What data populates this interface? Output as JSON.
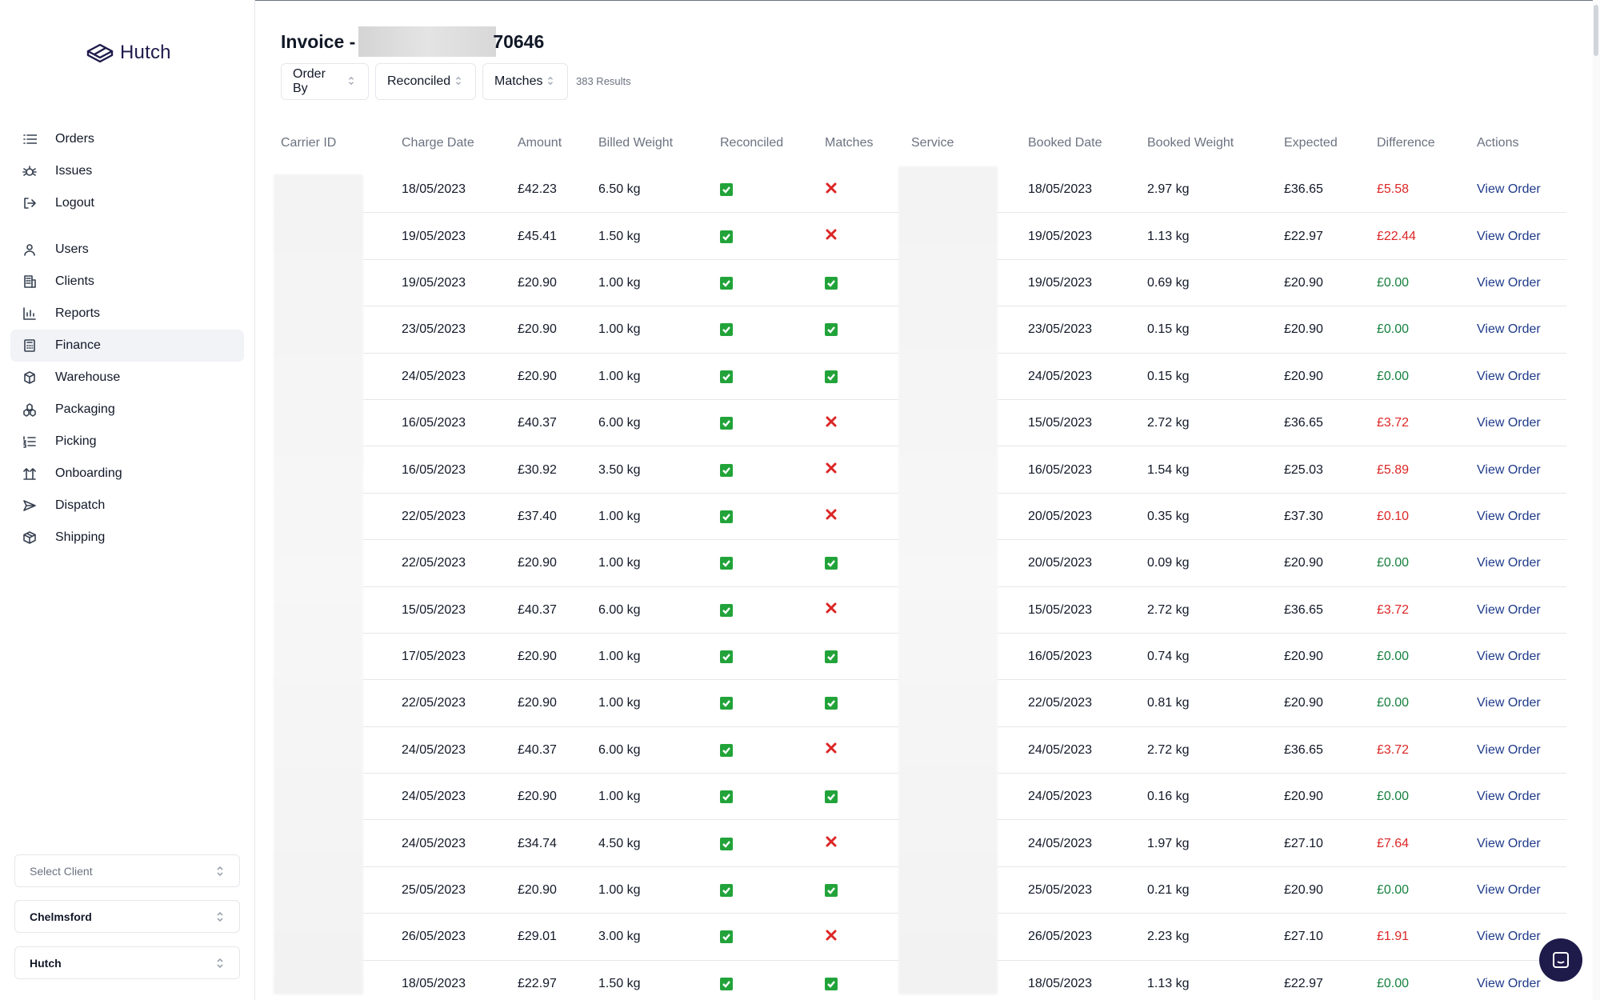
{
  "app": {
    "name": "Hutch"
  },
  "sidebar": {
    "items": [
      {
        "label": "Orders",
        "icon": "list-icon"
      },
      {
        "label": "Issues",
        "icon": "bug-icon"
      },
      {
        "label": "Logout",
        "icon": "logout-icon"
      },
      {
        "label": "Users",
        "icon": "user-icon"
      },
      {
        "label": "Clients",
        "icon": "building-icon"
      },
      {
        "label": "Reports",
        "icon": "bar-chart-icon"
      },
      {
        "label": "Finance",
        "icon": "calculator-icon",
        "active": true
      },
      {
        "label": "Warehouse",
        "icon": "cube-icon"
      },
      {
        "label": "Packaging",
        "icon": "boxes-icon"
      },
      {
        "label": "Picking",
        "icon": "list-ordered-icon"
      },
      {
        "label": "Onboarding",
        "icon": "arrows-up-icon"
      },
      {
        "label": "Dispatch",
        "icon": "send-icon"
      },
      {
        "label": "Shipping",
        "icon": "package-icon"
      }
    ],
    "selects": {
      "client_placeholder": "Select Client",
      "site_value": "Chelmsford",
      "company_value": "Hutch"
    }
  },
  "page": {
    "title_prefix": "Invoice -",
    "title_suffix": "70646"
  },
  "filters": {
    "order_by": "Order By",
    "reconciled": "Reconciled",
    "matches": "Matches",
    "results": "383 Results"
  },
  "table": {
    "headers": {
      "carrier_id": "Carrier ID",
      "charge_date": "Charge Date",
      "amount": "Amount",
      "billed_weight": "Billed Weight",
      "reconciled": "Reconciled",
      "matches": "Matches",
      "service": "Service",
      "booked_date": "Booked Date",
      "booked_weight": "Booked Weight",
      "expected": "Expected",
      "difference": "Difference",
      "actions": "Actions"
    },
    "action_label": "View Order",
    "rows": [
      {
        "charge_date": "18/05/2023",
        "amount": "£42.23",
        "billed_weight": "6.50 kg",
        "reconciled": true,
        "matches": false,
        "booked_date": "18/05/2023",
        "booked_weight": "2.97 kg",
        "expected": "£36.65",
        "difference": "£5.58"
      },
      {
        "charge_date": "19/05/2023",
        "amount": "£45.41",
        "billed_weight": "1.50 kg",
        "reconciled": true,
        "matches": false,
        "booked_date": "19/05/2023",
        "booked_weight": "1.13 kg",
        "expected": "£22.97",
        "difference": "£22.44"
      },
      {
        "charge_date": "19/05/2023",
        "amount": "£20.90",
        "billed_weight": "1.00 kg",
        "reconciled": true,
        "matches": true,
        "booked_date": "19/05/2023",
        "booked_weight": "0.69 kg",
        "expected": "£20.90",
        "difference": "£0.00"
      },
      {
        "charge_date": "23/05/2023",
        "amount": "£20.90",
        "billed_weight": "1.00 kg",
        "reconciled": true,
        "matches": true,
        "booked_date": "23/05/2023",
        "booked_weight": "0.15 kg",
        "expected": "£20.90",
        "difference": "£0.00"
      },
      {
        "charge_date": "24/05/2023",
        "amount": "£20.90",
        "billed_weight": "1.00 kg",
        "reconciled": true,
        "matches": true,
        "booked_date": "24/05/2023",
        "booked_weight": "0.15 kg",
        "expected": "£20.90",
        "difference": "£0.00"
      },
      {
        "charge_date": "16/05/2023",
        "amount": "£40.37",
        "billed_weight": "6.00 kg",
        "reconciled": true,
        "matches": false,
        "booked_date": "15/05/2023",
        "booked_weight": "2.72 kg",
        "expected": "£36.65",
        "difference": "£3.72"
      },
      {
        "charge_date": "16/05/2023",
        "amount": "£30.92",
        "billed_weight": "3.50 kg",
        "reconciled": true,
        "matches": false,
        "booked_date": "16/05/2023",
        "booked_weight": "1.54 kg",
        "expected": "£25.03",
        "difference": "£5.89"
      },
      {
        "charge_date": "22/05/2023",
        "amount": "£37.40",
        "billed_weight": "1.00 kg",
        "reconciled": true,
        "matches": false,
        "booked_date": "20/05/2023",
        "booked_weight": "0.35 kg",
        "expected": "£37.30",
        "difference": "£0.10"
      },
      {
        "charge_date": "22/05/2023",
        "amount": "£20.90",
        "billed_weight": "1.00 kg",
        "reconciled": true,
        "matches": true,
        "booked_date": "20/05/2023",
        "booked_weight": "0.09 kg",
        "expected": "£20.90",
        "difference": "£0.00"
      },
      {
        "charge_date": "15/05/2023",
        "amount": "£40.37",
        "billed_weight": "6.00 kg",
        "reconciled": true,
        "matches": false,
        "booked_date": "15/05/2023",
        "booked_weight": "2.72 kg",
        "expected": "£36.65",
        "difference": "£3.72"
      },
      {
        "charge_date": "17/05/2023",
        "amount": "£20.90",
        "billed_weight": "1.00 kg",
        "reconciled": true,
        "matches": true,
        "booked_date": "16/05/2023",
        "booked_weight": "0.74 kg",
        "expected": "£20.90",
        "difference": "£0.00"
      },
      {
        "charge_date": "22/05/2023",
        "amount": "£20.90",
        "billed_weight": "1.00 kg",
        "reconciled": true,
        "matches": true,
        "booked_date": "22/05/2023",
        "booked_weight": "0.81 kg",
        "expected": "£20.90",
        "difference": "£0.00"
      },
      {
        "charge_date": "24/05/2023",
        "amount": "£40.37",
        "billed_weight": "6.00 kg",
        "reconciled": true,
        "matches": false,
        "booked_date": "24/05/2023",
        "booked_weight": "2.72 kg",
        "expected": "£36.65",
        "difference": "£3.72"
      },
      {
        "charge_date": "24/05/2023",
        "amount": "£20.90",
        "billed_weight": "1.00 kg",
        "reconciled": true,
        "matches": true,
        "booked_date": "24/05/2023",
        "booked_weight": "0.16 kg",
        "expected": "£20.90",
        "difference": "£0.00"
      },
      {
        "charge_date": "24/05/2023",
        "amount": "£34.74",
        "billed_weight": "4.50 kg",
        "reconciled": true,
        "matches": false,
        "booked_date": "24/05/2023",
        "booked_weight": "1.97 kg",
        "expected": "£27.10",
        "difference": "£7.64"
      },
      {
        "charge_date": "25/05/2023",
        "amount": "£20.90",
        "billed_weight": "1.00 kg",
        "reconciled": true,
        "matches": true,
        "booked_date": "25/05/2023",
        "booked_weight": "0.21 kg",
        "expected": "£20.90",
        "difference": "£0.00"
      },
      {
        "charge_date": "26/05/2023",
        "amount": "£29.01",
        "billed_weight": "3.00 kg",
        "reconciled": true,
        "matches": false,
        "booked_date": "26/05/2023",
        "booked_weight": "2.23 kg",
        "expected": "£27.10",
        "difference": "£1.91"
      },
      {
        "charge_date": "18/05/2023",
        "amount": "£22.97",
        "billed_weight": "1.50 kg",
        "reconciled": true,
        "matches": true,
        "booked_date": "18/05/2023",
        "booked_weight": "1.13 kg",
        "expected": "£22.97",
        "difference": "£0.00"
      }
    ]
  },
  "colors": {
    "accent": "#1e1b4b",
    "link": "#1e3a8a",
    "positive": "#15803d",
    "negative": "#dc2626",
    "check": "#22a33a"
  }
}
